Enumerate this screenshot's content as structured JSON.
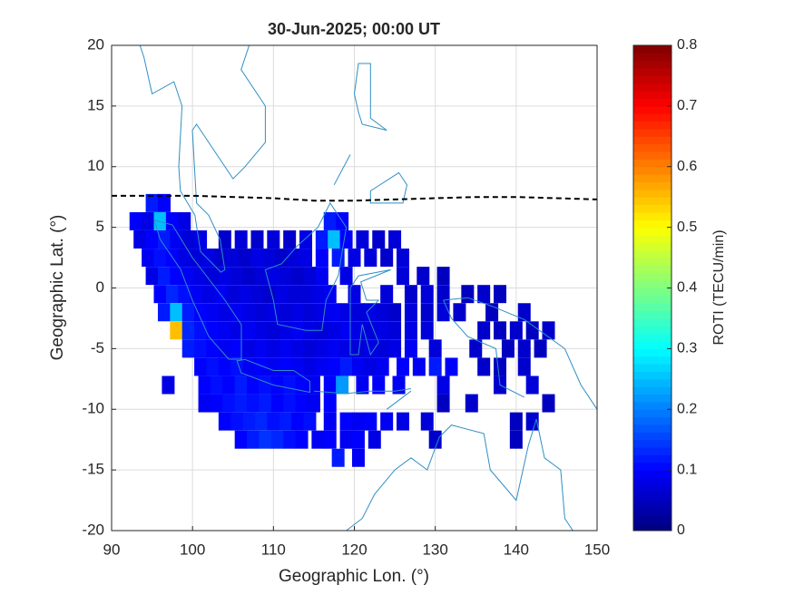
{
  "chart_data": {
    "type": "heatmap",
    "title": "30-Jun-2025; 00:00 UT",
    "x_label": "Geographic Lon. (°)",
    "y_label": "Geographic Lat. (°)",
    "colorbar_label": "ROTI (TECU/min)",
    "colormap": "jet",
    "xlim": [
      90,
      150
    ],
    "ylim": [
      -20,
      20
    ],
    "xticks": [
      90,
      100,
      110,
      120,
      130,
      140,
      150
    ],
    "yticks": [
      -20,
      -15,
      -10,
      -5,
      0,
      5,
      10,
      15,
      20
    ],
    "clim": [
      0,
      0.8
    ],
    "cticks": [
      0,
      0.1,
      0.2,
      0.3,
      0.4,
      0.5,
      0.6,
      0.7,
      0.8
    ],
    "grid": true,
    "line": {
      "color": "#000000",
      "x": [
        90,
        100,
        110,
        115,
        120,
        125,
        130,
        135,
        140,
        145,
        150
      ],
      "y": [
        7.6,
        7.6,
        7.4,
        7.2,
        7.2,
        7.3,
        7.4,
        7.5,
        7.5,
        7.4,
        7.3
      ]
    },
    "rows": [
      {
        "lat": 7,
        "lon": [
          95,
          96.5
        ],
        "values": [
          0.12,
          0.1
        ]
      },
      {
        "lat": 5.5,
        "lon": [
          93,
          94.5,
          96,
          97.5,
          99,
          117,
          118.5
        ],
        "values": [
          0.1,
          0.08,
          0.25,
          0.1,
          0.08,
          0.12,
          0.1
        ]
      },
      {
        "lat": 4,
        "lon": [
          93.5,
          95,
          96.5,
          98,
          99.5,
          101,
          104,
          106,
          108,
          110,
          112,
          114,
          116,
          117.5,
          119,
          121,
          123,
          125
        ],
        "values": [
          0.08,
          0.1,
          0.12,
          0.09,
          0.07,
          0.08,
          0.06,
          0.07,
          0.06,
          0.07,
          0.06,
          0.08,
          0.12,
          0.25,
          0.1,
          0.07,
          0.06,
          0.07
        ]
      },
      {
        "lat": 2.5,
        "lon": [
          94.5,
          96,
          97.5,
          99,
          100.5,
          102,
          103.5,
          105,
          106.5,
          108,
          109.5,
          111,
          112.5,
          114,
          116,
          118,
          120,
          122,
          124,
          126
        ],
        "values": [
          0.09,
          0.11,
          0.1,
          0.08,
          0.07,
          0.08,
          0.06,
          0.07,
          0.06,
          0.08,
          0.07,
          0.06,
          0.07,
          0.08,
          0.1,
          0.12,
          0.08,
          0.07,
          0.06,
          0.07
        ]
      },
      {
        "lat": 1,
        "lon": [
          95,
          96.5,
          98,
          99.5,
          101,
          102.5,
          104,
          105.5,
          107,
          108.5,
          110,
          111.5,
          113,
          114.5,
          116,
          119,
          126,
          128.5,
          131
        ],
        "values": [
          0.08,
          0.12,
          0.1,
          0.09,
          0.08,
          0.07,
          0.08,
          0.07,
          0.06,
          0.07,
          0.08,
          0.07,
          0.06,
          0.07,
          0.09,
          0.08,
          0.07,
          0.06,
          0.05
        ]
      },
      {
        "lat": -0.5,
        "lon": [
          96,
          97.5,
          99,
          100.5,
          102,
          103.5,
          105,
          106.5,
          108,
          109.5,
          111,
          112.5,
          114,
          115.5,
          117,
          120,
          124,
          127,
          129,
          131,
          134,
          136,
          138
        ],
        "values": [
          0.1,
          0.13,
          0.11,
          0.09,
          0.08,
          0.09,
          0.07,
          0.08,
          0.07,
          0.06,
          0.08,
          0.07,
          0.07,
          0.08,
          0.09,
          0.08,
          0.07,
          0.06,
          0.07,
          0.06,
          0.05,
          0.06,
          0.05
        ]
      },
      {
        "lat": -2,
        "lon": [
          96.5,
          98,
          99.5,
          101,
          102.5,
          104,
          105.5,
          107,
          108.5,
          110,
          111.5,
          113,
          114.5,
          116,
          117.5,
          119,
          120.5,
          122,
          123.5,
          125,
          127,
          129,
          131,
          133,
          137,
          141
        ],
        "values": [
          0.12,
          0.25,
          0.12,
          0.1,
          0.09,
          0.08,
          0.09,
          0.08,
          0.07,
          0.08,
          0.07,
          0.08,
          0.07,
          0.08,
          0.09,
          0.08,
          0.07,
          0.08,
          0.07,
          0.06,
          0.07,
          0.06,
          0.07,
          0.06,
          0.05,
          0.06
        ]
      },
      {
        "lat": -3.5,
        "lon": [
          98,
          99.5,
          101,
          102.5,
          104,
          105.5,
          107,
          108.5,
          110,
          111.5,
          113,
          114.5,
          116,
          117.5,
          119,
          120.5,
          122,
          123.5,
          125,
          127,
          129,
          136,
          138,
          140,
          142,
          144
        ],
        "values": [
          0.55,
          0.13,
          0.11,
          0.1,
          0.09,
          0.08,
          0.09,
          0.08,
          0.07,
          0.08,
          0.09,
          0.08,
          0.07,
          0.08,
          0.09,
          0.08,
          0.07,
          0.08,
          0.07,
          0.08,
          0.07,
          0.06,
          0.05,
          0.06,
          0.05,
          0.06
        ]
      },
      {
        "lat": -5,
        "lon": [
          99.5,
          101,
          102.5,
          104,
          105.5,
          107,
          108.5,
          110,
          111.5,
          113,
          114.5,
          116,
          117.5,
          119,
          120.5,
          122,
          123.5,
          125,
          127,
          130,
          135,
          139,
          141,
          143
        ],
        "values": [
          0.12,
          0.11,
          0.1,
          0.09,
          0.1,
          0.08,
          0.09,
          0.08,
          0.09,
          0.08,
          0.07,
          0.08,
          0.09,
          0.08,
          0.07,
          0.08,
          0.07,
          0.08,
          0.09,
          0.07,
          0.06,
          0.05,
          0.06,
          0.05
        ]
      },
      {
        "lat": -6.5,
        "lon": [
          101,
          102.5,
          104,
          105.5,
          107,
          108.5,
          110,
          111.5,
          113,
          114.5,
          116,
          117.5,
          119,
          120.5,
          122,
          123.5,
          126,
          128,
          130,
          132,
          136,
          138,
          141
        ],
        "values": [
          0.1,
          0.11,
          0.1,
          0.11,
          0.09,
          0.1,
          0.09,
          0.1,
          0.09,
          0.08,
          0.09,
          0.1,
          0.12,
          0.09,
          0.08,
          0.09,
          0.1,
          0.09,
          0.12,
          0.1,
          0.06,
          0.05,
          0.06
        ]
      },
      {
        "lat": -8,
        "lon": [
          97,
          101.5,
          103,
          104.5,
          106,
          107.5,
          109,
          110.5,
          112,
          113.5,
          115,
          117,
          118.5,
          121,
          123,
          125.5,
          131,
          138,
          142
        ],
        "values": [
          0.08,
          0.1,
          0.11,
          0.1,
          0.12,
          0.1,
          0.11,
          0.1,
          0.11,
          0.1,
          0.09,
          0.1,
          0.22,
          0.09,
          0.1,
          0.09,
          0.08,
          0.06,
          0.07
        ]
      },
      {
        "lat": -9.5,
        "lon": [
          101.5,
          103,
          104.5,
          106,
          107.5,
          109,
          110.5,
          112,
          113.5,
          115,
          117,
          131,
          134.5,
          144
        ],
        "values": [
          0.09,
          0.1,
          0.11,
          0.12,
          0.11,
          0.12,
          0.1,
          0.11,
          0.1,
          0.09,
          0.1,
          0.05,
          0.06,
          0.05
        ]
      },
      {
        "lat": -11,
        "lon": [
          104,
          105.5,
          107,
          108.5,
          110,
          111.5,
          113,
          114.5,
          117,
          119,
          120.5,
          122,
          124,
          126,
          129,
          140,
          142
        ],
        "values": [
          0.1,
          0.11,
          0.12,
          0.13,
          0.11,
          0.12,
          0.1,
          0.11,
          0.09,
          0.1,
          0.09,
          0.1,
          0.09,
          0.08,
          0.07,
          0.05,
          0.06
        ]
      },
      {
        "lat": -12.5,
        "lon": [
          106,
          107.5,
          109,
          110.5,
          112,
          113.5,
          115.5,
          117,
          119,
          120.5,
          122.5,
          130,
          140
        ],
        "values": [
          0.1,
          0.12,
          0.14,
          0.13,
          0.11,
          0.1,
          0.09,
          0.1,
          0.09,
          0.1,
          0.08,
          0.06,
          0.05
        ]
      },
      {
        "lat": -14,
        "lon": [
          118,
          120.5
        ],
        "values": [
          0.12,
          0.09
        ]
      }
    ]
  }
}
